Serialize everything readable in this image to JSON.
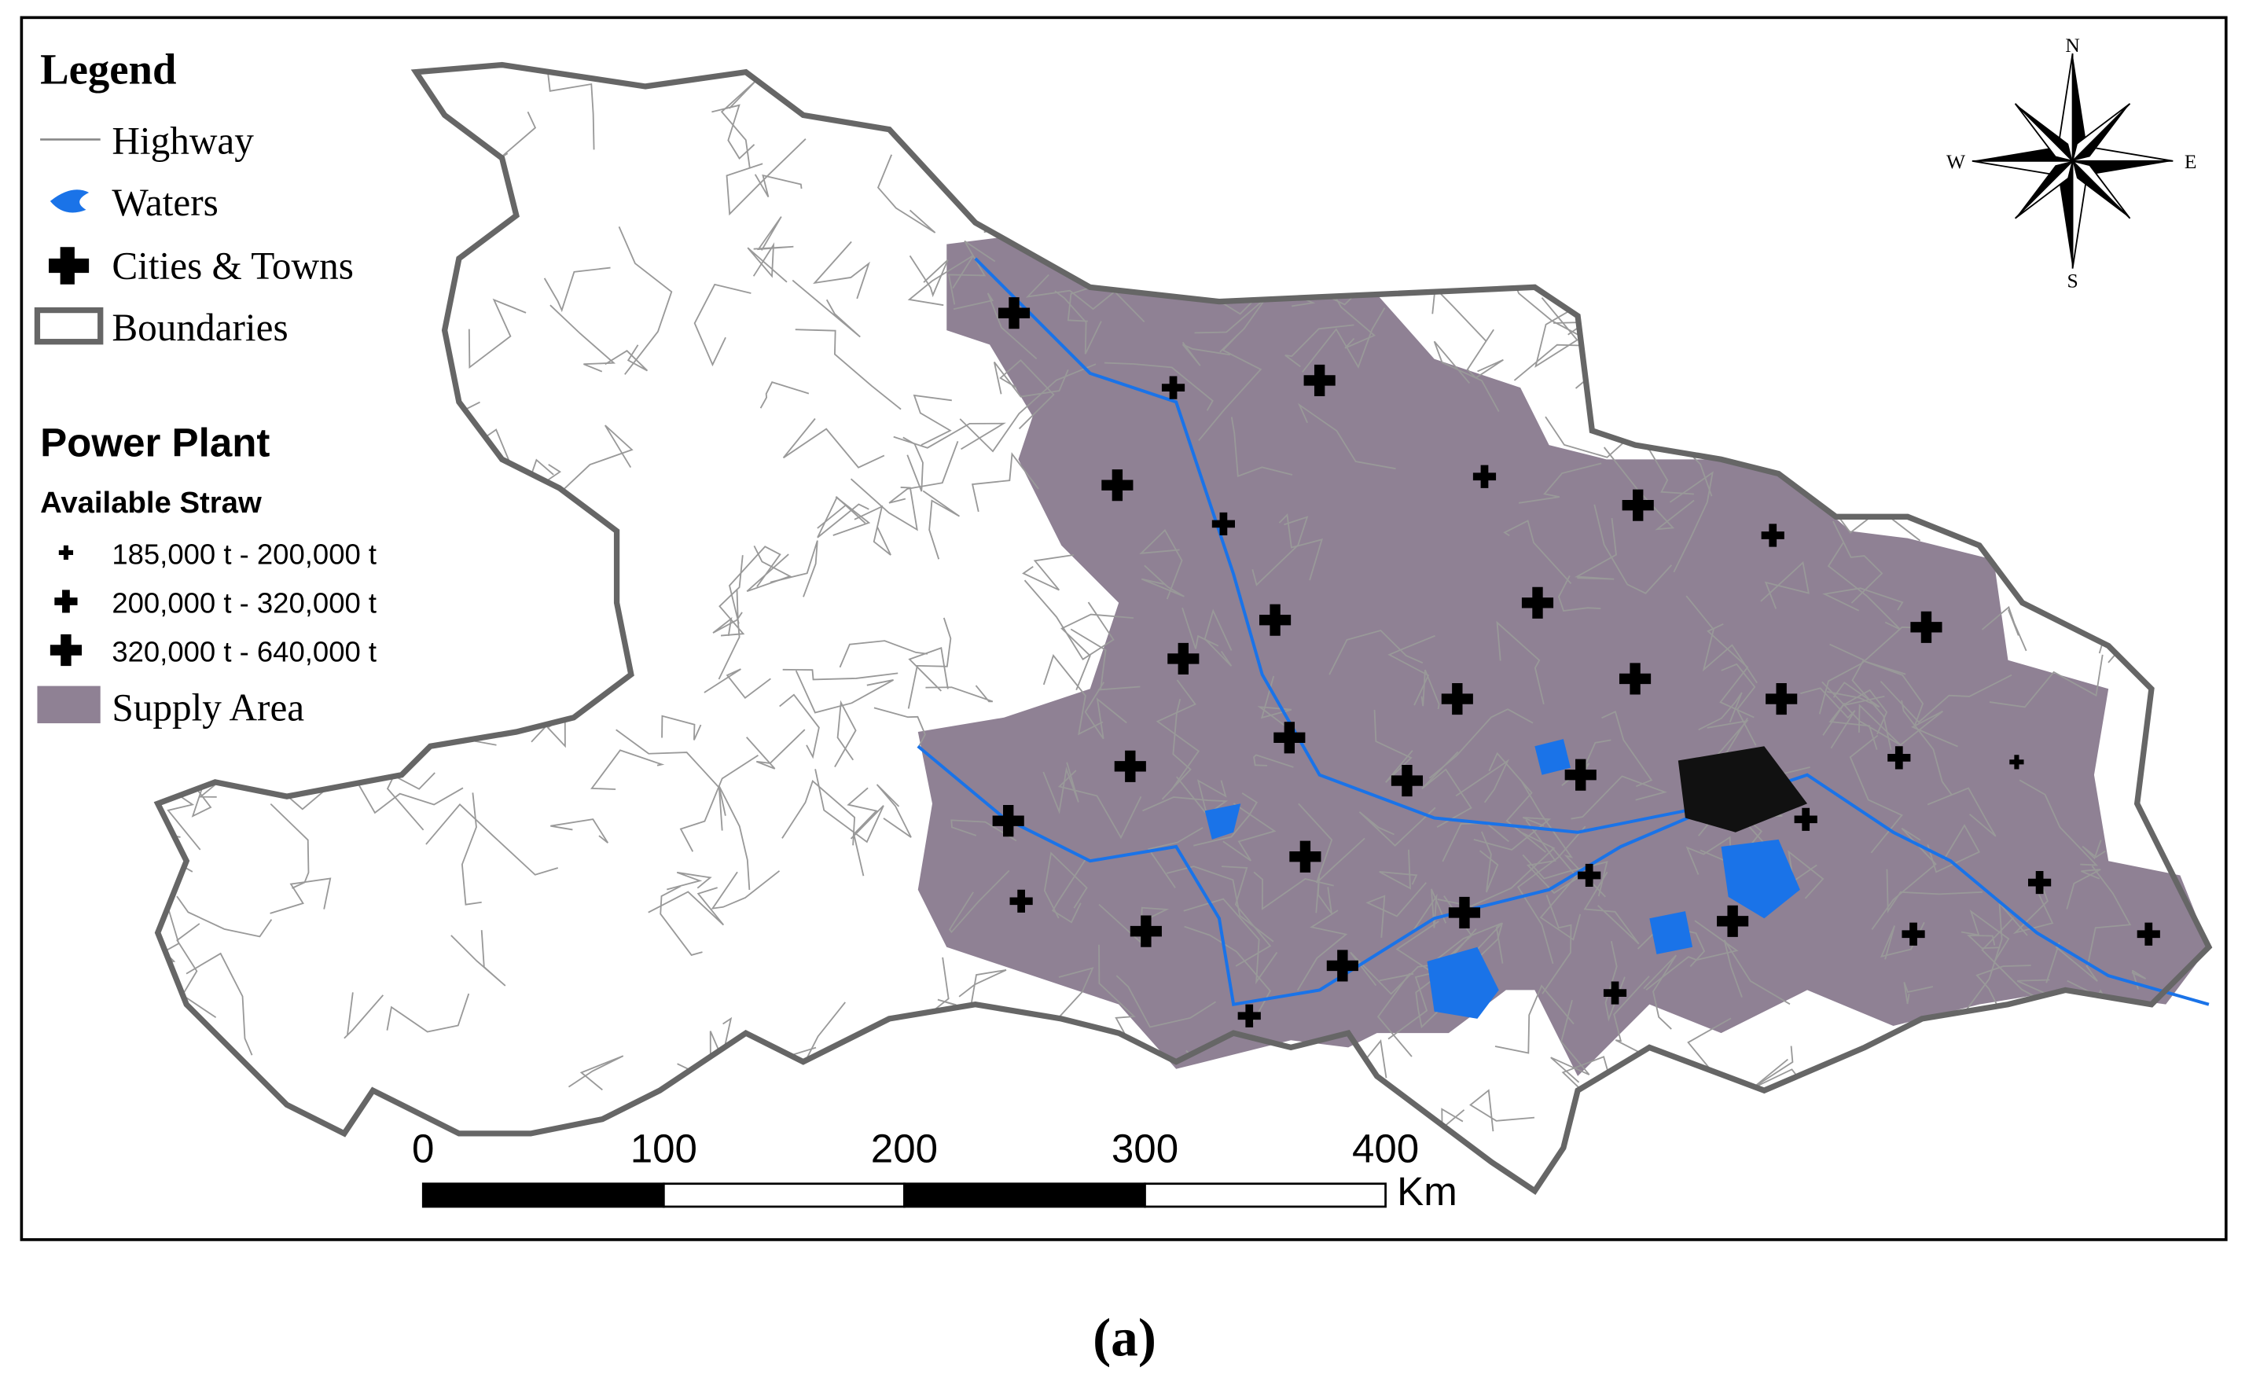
{
  "legend": {
    "title": "Legend",
    "items": [
      "Highway",
      "Waters",
      "Cities & Towns",
      "Boundaries"
    ]
  },
  "power_plant": {
    "title": "Power Plant",
    "subtitle": "Available Straw",
    "classes": [
      "185,000 t - 200,000 t",
      "200,000 t - 320,000 t",
      "320,000 t - 640,000 t"
    ],
    "supply_area": "Supply Area"
  },
  "compass": {
    "n": "N",
    "s": "S",
    "e": "E",
    "w": "W"
  },
  "scale_bar": {
    "ticks": [
      0,
      100,
      200,
      300,
      400
    ],
    "unit": "Km"
  },
  "caption": "(a)"
}
